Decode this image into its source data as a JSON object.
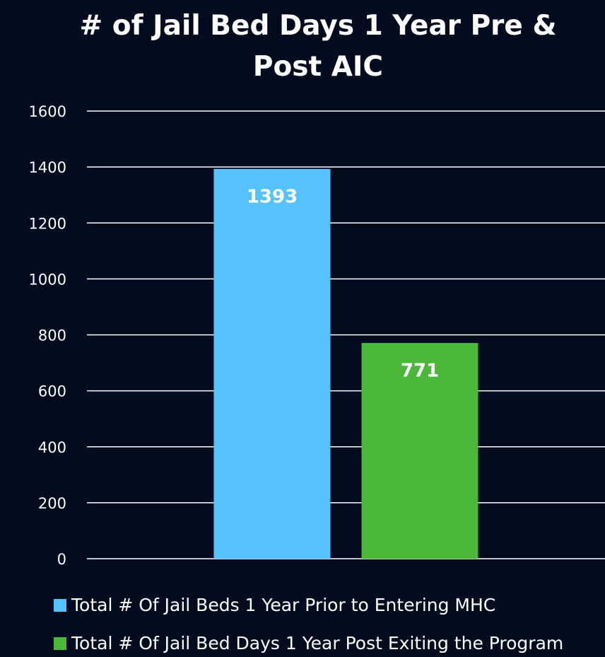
{
  "chart_data": {
    "type": "bar",
    "title": "# of Jail Bed Days 1 Year Pre & Post AIC",
    "categories": [
      null
    ],
    "series": [
      {
        "name": "Total # Of Jail Beds 1 Year Prior to Entering MHC",
        "color": "#55c3fb",
        "values": [
          1393
        ]
      },
      {
        "name": "Total # Of Jail Bed Days 1 Year Post Exiting the Program",
        "color": "#4cb83a",
        "values": [
          771
        ]
      }
    ],
    "ylim": [
      0,
      1600
    ],
    "yticks": [
      0,
      200,
      400,
      600,
      800,
      1000,
      1200,
      1400,
      1600
    ],
    "grid": true,
    "legend": "bottom",
    "data_labels": true
  }
}
